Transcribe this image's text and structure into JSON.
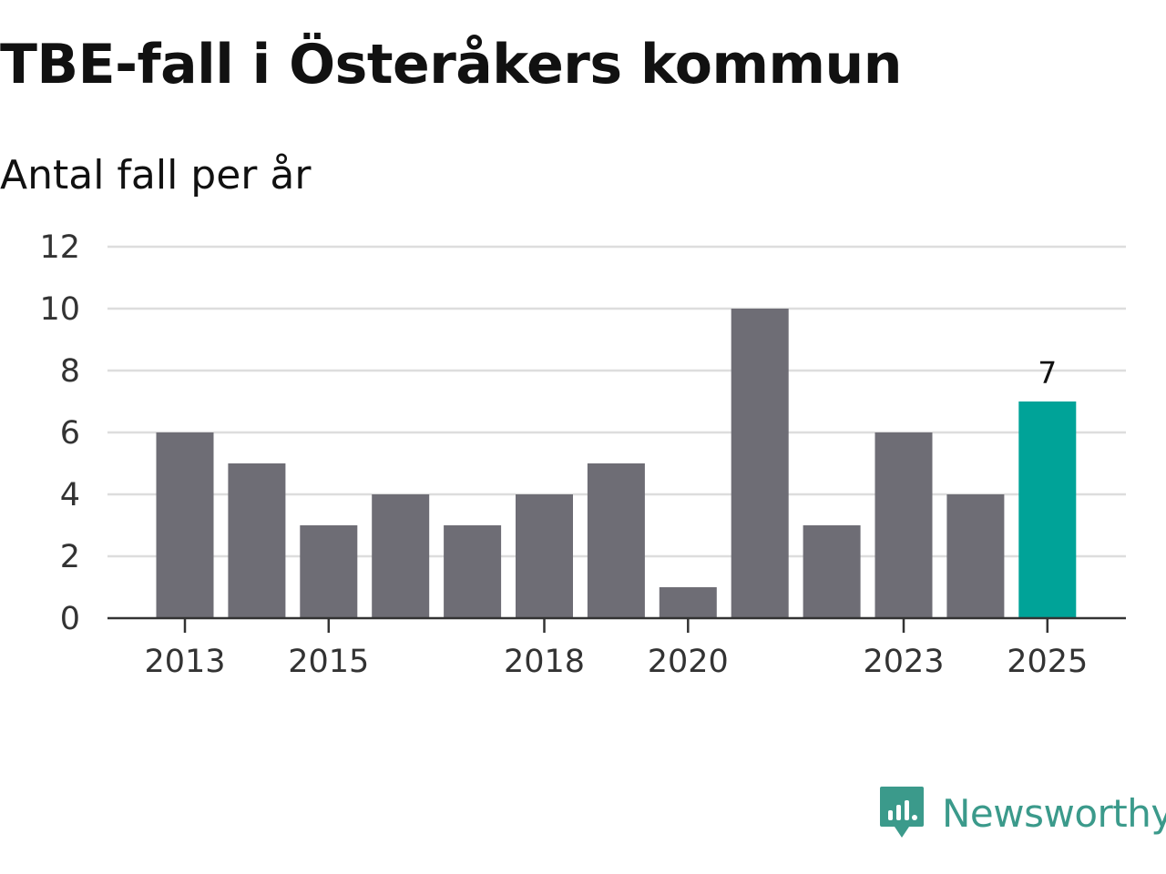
{
  "title": "TBE-fall i Österåkers kommun",
  "subtitle": "Antal fall per år",
  "brand": {
    "name": "Newsworthy",
    "logo_icon": "newsworthy-logo-icon",
    "color": "#3b9a8b"
  },
  "colors": {
    "bar": "#6e6d75",
    "highlight": "#00a398",
    "grid": "#dddddd",
    "axis": "#333333"
  },
  "chart_data": {
    "type": "bar",
    "title": "TBE-fall i Österåkers kommun",
    "subtitle": "Antal fall per år",
    "xlabel": "",
    "ylabel": "",
    "categories": [
      "2013",
      "2014",
      "2015",
      "2016",
      "2017",
      "2018",
      "2019",
      "2020",
      "2021",
      "2022",
      "2023",
      "2024",
      "2025"
    ],
    "values": [
      6,
      5,
      3,
      4,
      3,
      4,
      5,
      1,
      10,
      3,
      6,
      4,
      7
    ],
    "x_tick_labels": [
      "2013",
      "2015",
      "2018",
      "2020",
      "2023",
      "2025"
    ],
    "y_ticks": [
      0,
      2,
      4,
      6,
      8,
      10,
      12
    ],
    "ylim": [
      0,
      12
    ],
    "grid": true,
    "highlight_category": "2025",
    "data_labels": [
      {
        "category": "2025",
        "text": "7"
      }
    ]
  }
}
